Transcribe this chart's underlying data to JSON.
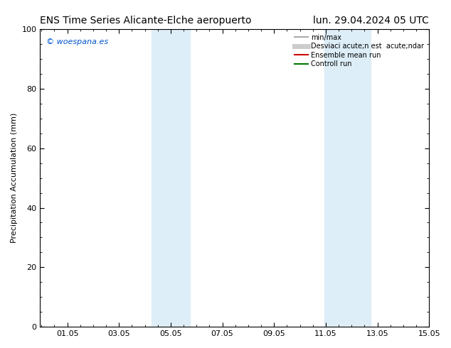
{
  "title_left": "ENS Time Series Alicante-Elche aeropuerto",
  "title_right": "lun. 29.04.2024 05 UTC",
  "ylabel": "Precipitation Accumulation (mm)",
  "watermark": "© woespana.es",
  "watermark_color": "#0055cc",
  "xlim": [
    0,
    15.05
  ],
  "ylim": [
    0,
    100
  ],
  "xticks": [
    1.05,
    3.05,
    5.05,
    7.05,
    9.05,
    11.05,
    13.05,
    15.05
  ],
  "xticklabels": [
    "01.05",
    "03.05",
    "05.05",
    "07.05",
    "09.05",
    "11.05",
    "13.05",
    "15.05"
  ],
  "yticks": [
    0,
    20,
    40,
    60,
    80,
    100
  ],
  "shaded_bands": [
    {
      "xmin": 4.3,
      "xmax": 5.8,
      "color": "#ddeef8",
      "alpha": 1.0
    },
    {
      "xmin": 11.0,
      "xmax": 12.8,
      "color": "#ddeef8",
      "alpha": 1.0
    }
  ],
  "legend_line1_label": "min/max",
  "legend_line1_color": "#aaaaaa",
  "legend_line2_label": "Desviaci acute;n est  acute;ndar",
  "legend_line2_color": "#cccccc",
  "legend_line3_label": "Ensemble mean run",
  "legend_line3_color": "#cc0000",
  "legend_line4_label": "Controll run",
  "legend_line4_color": "#007700",
  "bg_color": "#ffffff",
  "plot_bg_color": "#ffffff",
  "title_fontsize": 10,
  "tick_fontsize": 8,
  "ylabel_fontsize": 8,
  "watermark_fontsize": 8,
  "legend_fontsize": 7
}
